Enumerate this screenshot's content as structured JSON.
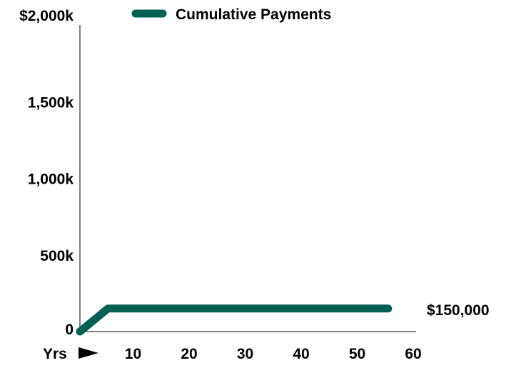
{
  "chart_data": {
    "type": "line",
    "legend_position": "top",
    "grid": false,
    "x": [
      0,
      5,
      55
    ],
    "series": [
      {
        "name": "Cumulative Payments",
        "color": "#006054",
        "values": [
          0,
          150000,
          150000
        ]
      }
    ],
    "x_ticks": [
      10,
      20,
      30,
      40,
      50,
      60
    ],
    "x_tick_labels": [
      "10",
      "20",
      "30",
      "40",
      "50",
      "60"
    ],
    "y_ticks": [
      0,
      500000,
      1000000,
      1500000,
      2000000
    ],
    "y_tick_labels": [
      "0",
      "500k",
      "1,000k",
      "1,500k",
      "$2,000k"
    ],
    "xlim": [
      0,
      60
    ],
    "ylim": [
      0,
      2000000
    ],
    "xlabel": "Yrs",
    "ylabel": "",
    "end_label": "$150,000"
  }
}
